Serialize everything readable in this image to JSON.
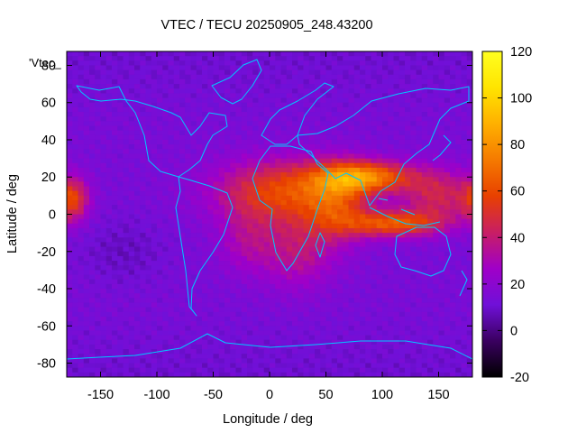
{
  "chart_data": {
    "type": "heatmap",
    "title": "VTEC / TECU 20250905_248.43200",
    "xlabel": "Longitude / deg",
    "ylabel": "Latitude / deg",
    "series_key": "'Vtec_",
    "xlim": [
      -180,
      180
    ],
    "ylim": [
      -87.5,
      87.5
    ],
    "x_ticks": [
      -150,
      -100,
      -50,
      0,
      50,
      100,
      150
    ],
    "y_ticks": [
      -80,
      -60,
      -40,
      -20,
      0,
      20,
      40,
      60,
      80
    ],
    "colorbar": {
      "range": [
        -20,
        120
      ],
      "ticks": [
        -20,
        0,
        20,
        40,
        60,
        80,
        100,
        120
      ],
      "palette": [
        "#000000",
        "#3a0060",
        "#7010d8",
        "#a000c8",
        "#c81e64",
        "#e84000",
        "#f57a00",
        "#ffb000",
        "#ffe400",
        "#ffff20"
      ]
    },
    "grid": {
      "lon_step": 5,
      "lat_step": 2.5,
      "background_tec": 14
    },
    "features": [
      {
        "name": "equatorial-anomaly-africa",
        "lon": 10,
        "lat": 12,
        "sigma_lon": 40,
        "sigma_lat": 12,
        "tec": 44
      },
      {
        "name": "south-africa-extension",
        "lon": 25,
        "lat": -20,
        "sigma_lon": 22,
        "sigma_lat": 14,
        "tec": 22
      },
      {
        "name": "northern-crest-india",
        "lon": 85,
        "lat": 20,
        "sigma_lon": 30,
        "sigma_lat": 6,
        "tec": 58
      },
      {
        "name": "southern-crest-indonesia",
        "lon": 110,
        "lat": -5,
        "sigma_lon": 30,
        "sigma_lat": 5,
        "tec": 48
      },
      {
        "name": "arabian-sea",
        "lon": 60,
        "lat": 5,
        "sigma_lon": 20,
        "sigma_lat": 14,
        "tec": 32
      },
      {
        "name": "pacific-west",
        "lon": 150,
        "lat": 10,
        "sigma_lon": 22,
        "sigma_lat": 10,
        "tec": 30
      },
      {
        "name": "dateline-belt",
        "lon": -175,
        "lat": 8,
        "sigma_lon": 10,
        "sigma_lat": 8,
        "tec": 38
      },
      {
        "name": "atlantic-south",
        "lon": -20,
        "lat": -15,
        "sigma_lon": 18,
        "sigma_lat": 12,
        "tec": 16
      },
      {
        "name": "south-pacific-low",
        "lon": -130,
        "lat": -20,
        "sigma_lon": 25,
        "sigma_lat": 12,
        "tec": -6
      }
    ]
  }
}
